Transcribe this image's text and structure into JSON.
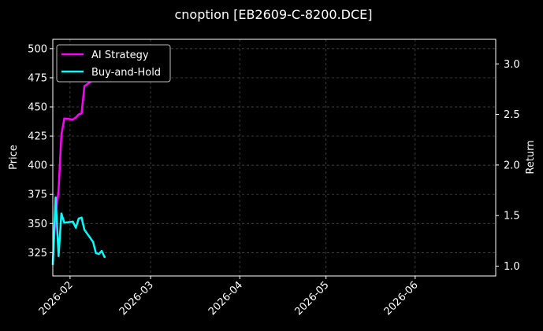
{
  "chart_data": {
    "type": "line",
    "title": "cnoption [EB2609-C-8200.DCE]",
    "ylabel": "Price",
    "y2label": "Return",
    "grid": true,
    "legend_position": "top-left",
    "x_range": [
      "2026-01-26",
      "2026-06-29"
    ],
    "ylim": [
      305,
      508
    ],
    "y2lim": [
      0.903,
      3.243
    ],
    "x_ticks": [
      "2026-02",
      "2026-03",
      "2026-04",
      "2026-05",
      "2026-06"
    ],
    "y_ticks": [
      325,
      350,
      375,
      400,
      425,
      450,
      475,
      500
    ],
    "y2_ticks": [
      "1.0",
      "1.5",
      "2.0",
      "2.5",
      "3.0"
    ],
    "series": [
      {
        "name": "AI Strategy",
        "axis": "right",
        "color": "#ff00ff",
        "points": [
          [
            "2026-01-26",
            1.05
          ],
          [
            "2026-01-27",
            1.5
          ],
          [
            "2026-01-28",
            1.75
          ],
          [
            "2026-01-29",
            2.3
          ],
          [
            "2026-01-30",
            2.46
          ],
          [
            "2026-02-02",
            2.45
          ],
          [
            "2026-02-03",
            2.47
          ],
          [
            "2026-02-04",
            2.5
          ],
          [
            "2026-02-05",
            2.51
          ],
          [
            "2026-02-06",
            2.78
          ],
          [
            "2026-02-09",
            2.84
          ],
          [
            "2026-02-10",
            2.93
          ],
          [
            "2026-02-11",
            3.02
          ],
          [
            "2026-02-12",
            3.12
          ],
          [
            "2026-02-13",
            3.18
          ]
        ]
      },
      {
        "name": "Buy-and-Hold",
        "axis": "right",
        "color": "#00ffff",
        "points": [
          [
            "2026-01-26",
            1.02
          ],
          [
            "2026-01-27",
            1.68
          ],
          [
            "2026-01-28",
            1.1
          ],
          [
            "2026-01-29",
            1.52
          ],
          [
            "2026-01-30",
            1.43
          ],
          [
            "2026-02-02",
            1.44
          ],
          [
            "2026-02-03",
            1.38
          ],
          [
            "2026-02-04",
            1.47
          ],
          [
            "2026-02-05",
            1.48
          ],
          [
            "2026-02-06",
            1.36
          ],
          [
            "2026-02-09",
            1.24
          ],
          [
            "2026-02-10",
            1.13
          ],
          [
            "2026-02-11",
            1.12
          ],
          [
            "2026-02-12",
            1.15
          ],
          [
            "2026-02-13",
            1.09
          ]
        ]
      }
    ]
  }
}
